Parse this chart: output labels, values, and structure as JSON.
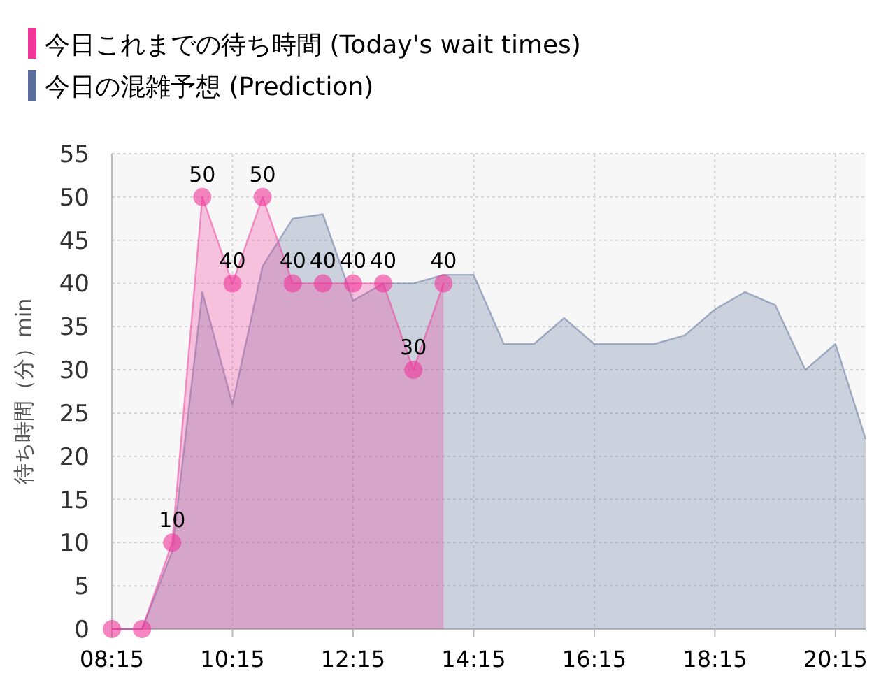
{
  "chart_data": {
    "type": "area",
    "ylabel": "待ち時間（分）min",
    "xlim": [
      8.25,
      20.75
    ],
    "xticks": [
      {
        "value": 8.25,
        "label": "08:15"
      },
      {
        "value": 10.25,
        "label": "10:15"
      },
      {
        "value": 12.25,
        "label": "12:15"
      },
      {
        "value": 14.25,
        "label": "14:15"
      },
      {
        "value": 16.25,
        "label": "16:15"
      },
      {
        "value": 18.25,
        "label": "18:15"
      },
      {
        "value": 20.25,
        "label": "20:15"
      }
    ],
    "ylim": [
      0,
      55
    ],
    "yticks": [
      0,
      5,
      10,
      15,
      20,
      25,
      30,
      35,
      40,
      45,
      50,
      55
    ],
    "grid": true,
    "legend": "top left",
    "series": [
      {
        "name": "今日の混雑予想 (Prediction)",
        "color": "#5b6f9c",
        "marker": "none",
        "x": [
          8.25,
          8.75,
          9.25,
          9.75,
          10.25,
          10.75,
          11.25,
          11.75,
          12.25,
          12.75,
          13.25,
          13.75,
          14.25,
          14.75,
          15.25,
          15.75,
          16.25,
          16.75,
          17.25,
          17.75,
          18.25,
          18.75,
          19.25,
          19.75,
          20.25,
          20.75
        ],
        "values": [
          0,
          0,
          9,
          39,
          26,
          42,
          47.5,
          48,
          38,
          40,
          40,
          41,
          41,
          33,
          33,
          36,
          33,
          33,
          33,
          34,
          37,
          39,
          37.5,
          30,
          33,
          22
        ]
      },
      {
        "name": "今日これまでの待ち時間 (Today's wait times)",
        "color": "#f0359a",
        "marker": "circle",
        "value_labels": [
          null,
          null,
          "10",
          "50",
          "40",
          "50",
          "40",
          "40",
          "40",
          "40",
          "30",
          "40"
        ],
        "x": [
          8.25,
          8.75,
          9.25,
          9.75,
          10.25,
          10.75,
          11.25,
          11.75,
          12.25,
          12.75,
          13.25,
          13.75
        ],
        "values": [
          0,
          0,
          10,
          50,
          40,
          50,
          40,
          40,
          40,
          40,
          30,
          40
        ]
      }
    ]
  }
}
